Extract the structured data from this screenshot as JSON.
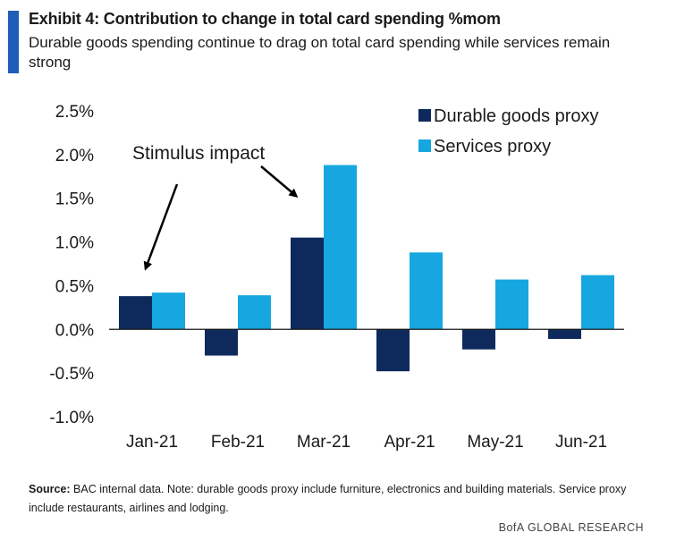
{
  "header": {
    "title": "Exhibit 4: Contribution to change in total card spending %mom",
    "subtitle": "Durable goods spending continue to drag on total card spending while services remain strong"
  },
  "chart_data": {
    "type": "bar",
    "categories": [
      "Jan-21",
      "Feb-21",
      "Mar-21",
      "Apr-21",
      "May-21",
      "Jun-21"
    ],
    "series": [
      {
        "name": "Durable goods proxy",
        "values": [
          0.38,
          -0.3,
          1.05,
          -0.48,
          -0.23,
          -0.11
        ],
        "color": "#0e2a5c"
      },
      {
        "name": "Services proxy",
        "values": [
          0.42,
          0.39,
          1.88,
          0.88,
          0.57,
          0.62
        ],
        "color": "#16a7e0"
      }
    ],
    "ylim": [
      -1.0,
      2.5
    ],
    "yticks": [
      "2.5%",
      "2.0%",
      "1.5%",
      "1.0%",
      "0.5%",
      "0.0%",
      "-0.5%",
      "-1.0%"
    ],
    "ytick_values": [
      2.5,
      2.0,
      1.5,
      1.0,
      0.5,
      0.0,
      -0.5,
      -1.0
    ],
    "legend_position": "top-right",
    "annotation": "Stimulus impact",
    "grid": false
  },
  "footer": {
    "source_label": "Source:",
    "source_text": "BAC internal data. Note: durable goods proxy include furniture, electronics and building materials. Service proxy include restaurants, airlines and lodging.",
    "brand": "BofA GLOBAL RESEARCH"
  }
}
